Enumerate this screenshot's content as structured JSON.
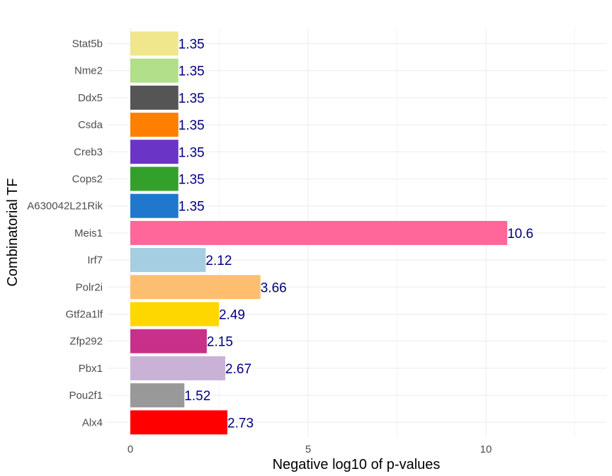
{
  "chart_data": {
    "type": "bar",
    "orientation": "horizontal",
    "title": "",
    "xlabel": "Negative log10 of p-values",
    "ylabel": "Combinatorial TF",
    "xlim": [
      0,
      13.4
    ],
    "xticks": [
      0,
      5,
      10
    ],
    "grid": true,
    "categories": [
      "Stat5b",
      "Nme2",
      "Ddx5",
      "Csda",
      "Creb3",
      "Cops2",
      "A630042L21Rik",
      "Meis1",
      "Irf7",
      "Polr2i",
      "Gtf2a1lf",
      "Zfp292",
      "Pbx1",
      "Pou2f1",
      "Alx4"
    ],
    "values": [
      1.35,
      1.35,
      1.35,
      1.35,
      1.35,
      1.35,
      1.35,
      10.6,
      2.12,
      3.66,
      2.49,
      2.15,
      2.67,
      1.52,
      2.73
    ],
    "value_labels": [
      "1.35",
      "1.35",
      "1.35",
      "1.35",
      "1.35",
      "1.35",
      "1.35",
      "10.6",
      "2.12",
      "3.66",
      "2.49",
      "2.15",
      "2.67",
      "1.52",
      "2.73"
    ],
    "colors": [
      "#f0e68c",
      "#b2df8a",
      "#555555",
      "#ff7f00",
      "#6a35c6",
      "#33a02c",
      "#1f78cd",
      "#ff6699",
      "#a6cee3",
      "#fdbf6f",
      "#ffd700",
      "#c9308a",
      "#cab2d6",
      "#999999",
      "#ff0000"
    ],
    "label_color": "#00007f",
    "legend": "none"
  }
}
